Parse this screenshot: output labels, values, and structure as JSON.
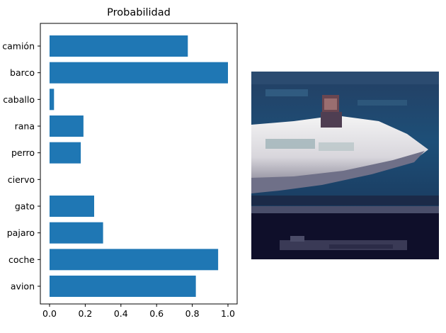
{
  "chart_data": {
    "type": "bar",
    "orientation": "horizontal",
    "title": "Probabilidad",
    "xlabel": "",
    "ylabel": "",
    "categories": [
      "avion",
      "coche",
      "pajaro",
      "gato",
      "ciervo",
      "perro",
      "rana",
      "caballo",
      "barco",
      "camión"
    ],
    "values": [
      0.82,
      0.945,
      0.3,
      0.25,
      0.0,
      0.175,
      0.19,
      0.025,
      1.0,
      0.775
    ],
    "xlim": [
      0,
      1.05
    ],
    "xticks": [
      0.0,
      0.2,
      0.4,
      0.6,
      0.8,
      1.0
    ],
    "xtick_labels": [
      "0.0",
      "0.2",
      "0.4",
      "0.6",
      "0.8",
      "1.0"
    ],
    "bar_color": "#1f77b4",
    "grid": false,
    "legend": "none"
  },
  "image_panel": {
    "icon": "boat-photo-thumbnail"
  }
}
